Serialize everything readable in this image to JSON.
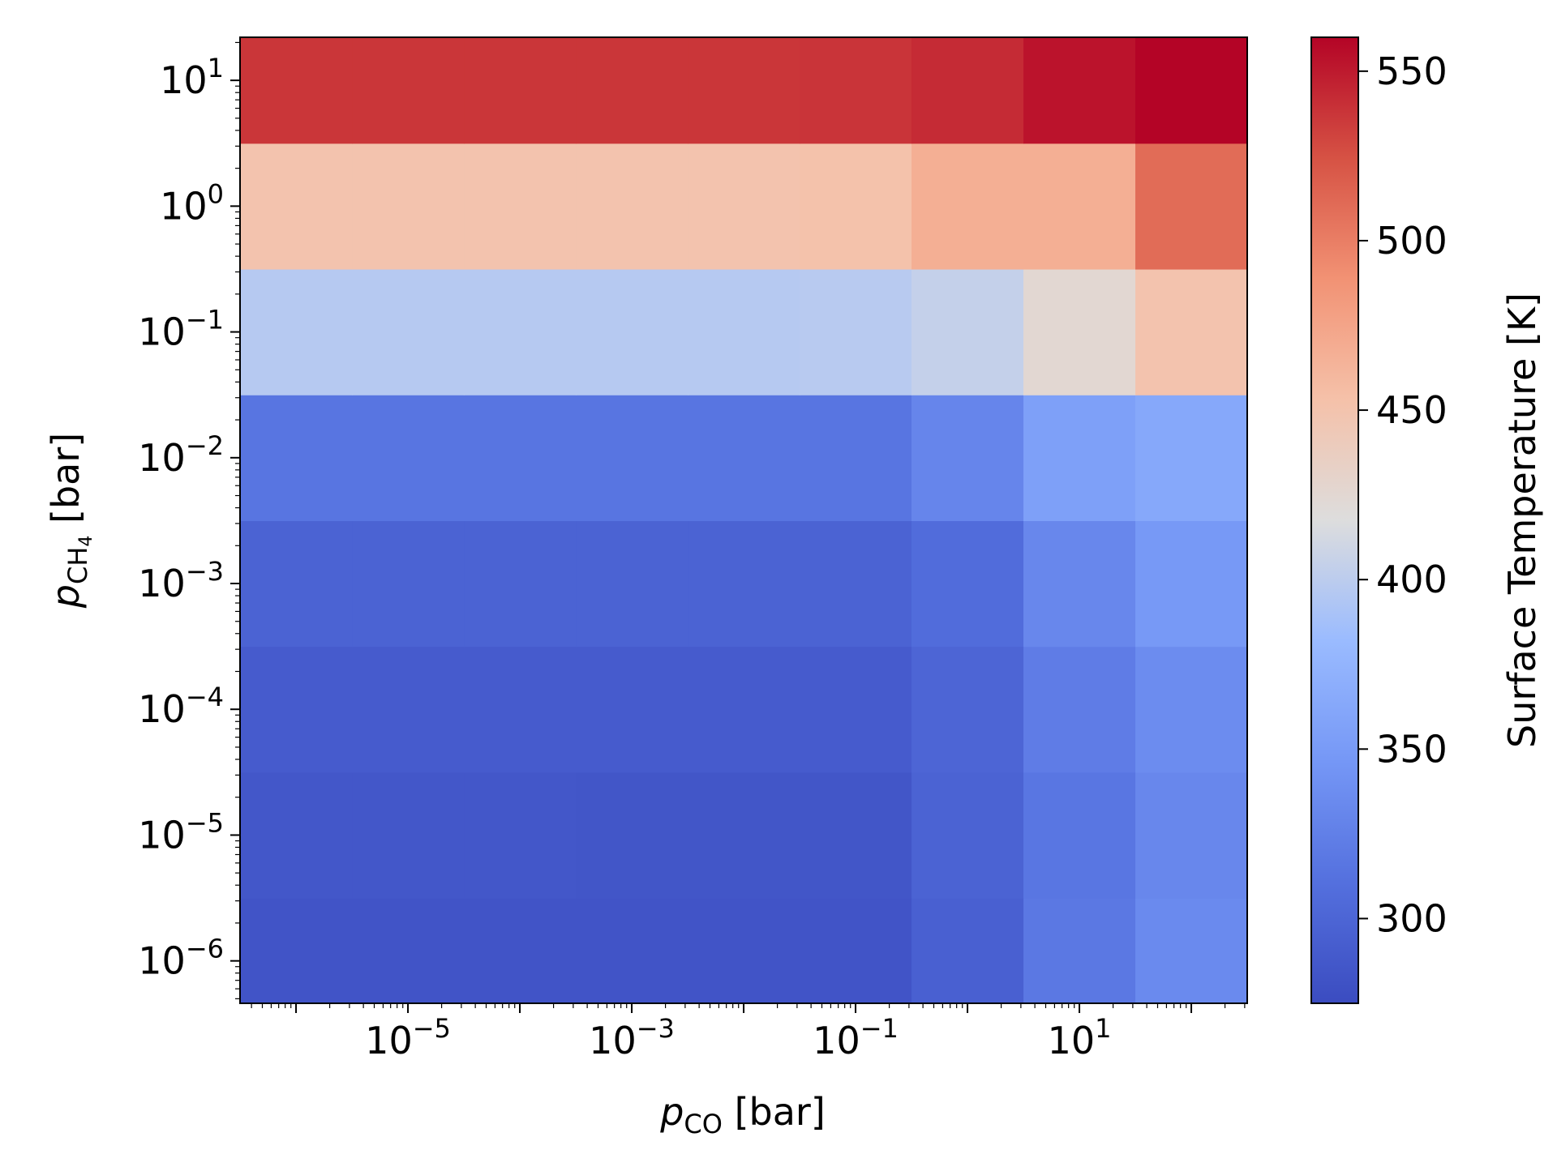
{
  "chart_data": {
    "type": "heatmap",
    "xscale": "log",
    "yscale": "log",
    "x_centers_bar": [
      1e-06,
      1e-05,
      0.0001,
      0.001,
      0.01,
      0.1,
      1,
      10,
      100
    ],
    "y_centers_bar": [
      1e-06,
      1e-05,
      0.0001,
      0.001,
      0.01,
      0.1,
      1,
      10
    ],
    "xlim": [
      3.16e-07,
      316
    ],
    "ylim": [
      4.6e-07,
      22
    ],
    "values_K": [
      [
        283,
        283,
        283,
        283,
        283,
        283,
        295,
        318,
        334
      ],
      [
        286,
        286,
        286,
        285,
        285,
        285,
        298,
        316,
        332
      ],
      [
        290,
        290,
        290,
        290,
        290,
        290,
        300,
        322,
        336
      ],
      [
        298,
        298,
        298,
        298,
        298,
        298,
        307,
        332,
        348
      ],
      [
        315,
        315,
        315,
        315,
        315,
        315,
        330,
        355,
        363
      ],
      [
        397,
        397,
        397,
        397,
        397,
        398,
        404,
        425,
        450
      ],
      [
        450,
        450,
        450,
        450,
        450,
        452,
        467,
        467,
        510
      ],
      [
        537,
        537,
        537,
        537,
        537,
        538,
        542,
        553,
        562
      ]
    ],
    "colorbar": {
      "label": "Surface Temperature [K]",
      "vmin": 275,
      "vmax": 560,
      "ticks": [
        "300",
        "350",
        "400",
        "450",
        "500",
        "550"
      ]
    },
    "xlabel": {
      "symbol": "p",
      "subscript": "CO",
      "unit": " [bar]"
    },
    "ylabel": {
      "symbol": "p",
      "subscript": "CH",
      "subsub": "4",
      "unit": " [bar]"
    },
    "xticks": [
      {
        "base": "10",
        "exp": "−5",
        "value": 1e-05
      },
      {
        "base": "10",
        "exp": "−3",
        "value": 0.001
      },
      {
        "base": "10",
        "exp": "−1",
        "value": 0.1
      },
      {
        "base": "10",
        "exp": "1",
        "value": 10
      }
    ],
    "yticks": [
      {
        "base": "10",
        "exp": "−6",
        "value": 1e-06
      },
      {
        "base": "10",
        "exp": "−5",
        "value": 1e-05
      },
      {
        "base": "10",
        "exp": "−4",
        "value": 0.0001
      },
      {
        "base": "10",
        "exp": "−3",
        "value": 0.001
      },
      {
        "base": "10",
        "exp": "−2",
        "value": 0.01
      },
      {
        "base": "10",
        "exp": "−1",
        "value": 0.1
      },
      {
        "base": "10",
        "exp": "0",
        "value": 1
      },
      {
        "base": "10",
        "exp": "1",
        "value": 10
      }
    ],
    "colormap": "coolwarm"
  }
}
